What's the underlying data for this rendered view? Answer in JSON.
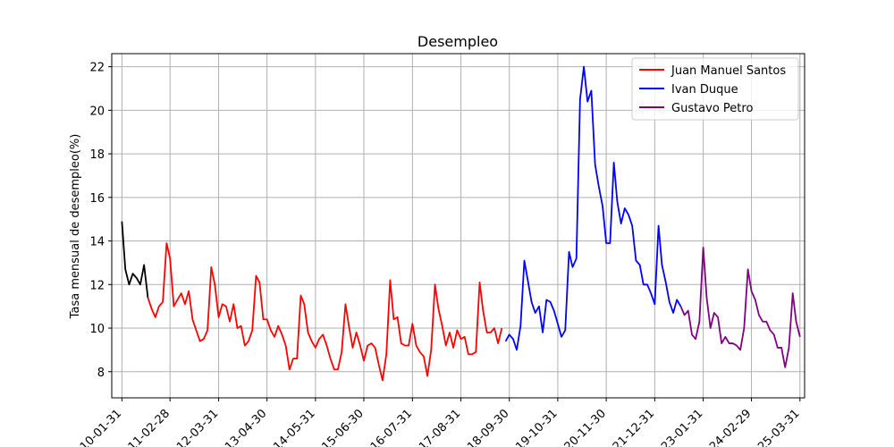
{
  "chart_data": {
    "type": "line",
    "title": "Desempleo",
    "xlabel": "",
    "ylabel": "Tasa mensual de desempleo(%)",
    "ylim": [
      6.8,
      22.6
    ],
    "xlim": [
      "2009-11-09",
      "2025-05-08"
    ],
    "grid": true,
    "legend": "top-right",
    "x_ticks": [
      "2010-01-31",
      "2011-02-28",
      "2012-03-31",
      "2013-04-30",
      "2014-05-31",
      "2015-06-30",
      "2016-07-31",
      "2017-08-31",
      "2018-09-30",
      "2019-10-31",
      "2020-11-30",
      "2021-12-31",
      "2023-01-31",
      "2024-02-29",
      "2025-03-31"
    ],
    "y_ticks": [
      8,
      10,
      12,
      14,
      16,
      18,
      20,
      22
    ],
    "series": [
      {
        "name": "",
        "color": "#000000",
        "x": [
          "2010-01-31",
          "2010-02-28",
          "2010-03-31",
          "2010-04-30",
          "2010-05-31",
          "2010-06-30",
          "2010-07-31",
          "2010-08-31"
        ],
        "values": [
          14.9,
          12.7,
          12.0,
          12.5,
          12.3,
          12.0,
          12.9,
          11.4
        ]
      },
      {
        "name": "Juan Manuel Santos",
        "color": "#ff0000",
        "x": [
          "2010-08-31",
          "2010-09-30",
          "2010-10-31",
          "2010-11-30",
          "2010-12-31",
          "2011-01-31",
          "2011-02-28",
          "2011-03-31",
          "2011-04-30",
          "2011-05-31",
          "2011-06-30",
          "2011-07-31",
          "2011-08-31",
          "2011-09-30",
          "2011-10-31",
          "2011-11-30",
          "2011-12-31",
          "2012-01-31",
          "2012-02-29",
          "2012-03-31",
          "2012-04-30",
          "2012-05-31",
          "2012-06-30",
          "2012-07-31",
          "2012-08-31",
          "2012-09-30",
          "2012-10-31",
          "2012-11-30",
          "2012-12-31",
          "2013-01-31",
          "2013-02-28",
          "2013-03-31",
          "2013-04-30",
          "2013-05-31",
          "2013-06-30",
          "2013-07-31",
          "2013-08-31",
          "2013-09-30",
          "2013-10-31",
          "2013-11-30",
          "2013-12-31",
          "2014-01-31",
          "2014-02-28",
          "2014-03-31",
          "2014-04-30",
          "2014-05-31",
          "2014-06-30",
          "2014-07-31",
          "2014-08-31",
          "2014-09-30",
          "2014-10-31",
          "2014-11-30",
          "2014-12-31",
          "2015-01-31",
          "2015-02-28",
          "2015-03-31",
          "2015-04-30",
          "2015-05-31",
          "2015-06-30",
          "2015-07-31",
          "2015-08-31",
          "2015-09-30",
          "2015-10-31",
          "2015-11-30",
          "2015-12-31",
          "2016-01-31",
          "2016-02-29",
          "2016-03-31",
          "2016-04-30",
          "2016-05-31",
          "2016-06-30",
          "2016-07-31",
          "2016-08-31",
          "2016-09-30",
          "2016-10-31",
          "2016-11-30",
          "2016-12-31",
          "2017-01-31",
          "2017-02-28",
          "2017-03-31",
          "2017-04-30",
          "2017-05-31",
          "2017-06-30",
          "2017-07-31",
          "2017-08-31",
          "2017-09-30",
          "2017-10-31",
          "2017-11-30",
          "2017-12-31",
          "2018-01-31",
          "2018-02-28",
          "2018-03-31",
          "2018-04-30",
          "2018-05-31",
          "2018-06-30",
          "2018-07-31"
        ],
        "values": [
          11.4,
          10.9,
          10.5,
          11.0,
          11.2,
          13.9,
          13.2,
          11.0,
          11.3,
          11.6,
          11.1,
          11.7,
          10.4,
          9.9,
          9.4,
          9.5,
          9.9,
          12.8,
          12.0,
          10.5,
          11.1,
          11.0,
          10.3,
          11.1,
          10.0,
          10.1,
          9.2,
          9.4,
          9.9,
          12.4,
          12.1,
          10.4,
          10.4,
          9.9,
          9.6,
          10.1,
          9.7,
          9.2,
          8.1,
          8.6,
          8.6,
          11.5,
          11.1,
          9.8,
          9.4,
          9.1,
          9.5,
          9.7,
          9.2,
          8.6,
          8.1,
          8.1,
          8.9,
          11.1,
          10.1,
          9.1,
          9.8,
          9.2,
          8.5,
          9.2,
          9.3,
          9.1,
          8.3,
          7.6,
          8.8,
          12.2,
          10.4,
          10.5,
          9.3,
          9.2,
          9.2,
          10.2,
          9.2,
          8.9,
          8.7,
          7.8,
          9.0,
          12.0,
          10.9,
          10.1,
          9.2,
          9.8,
          9.1,
          9.9,
          9.5,
          9.6,
          8.8,
          8.8,
          8.9,
          12.1,
          10.8,
          9.8,
          9.8,
          10.0,
          9.3,
          10.0
        ]
      },
      {
        "name": "Ivan Duque",
        "color": "#0000ff",
        "x": [
          "2018-08-31",
          "2018-09-30",
          "2018-10-31",
          "2018-11-30",
          "2018-12-31",
          "2019-01-31",
          "2019-02-28",
          "2019-03-31",
          "2019-04-30",
          "2019-05-31",
          "2019-06-30",
          "2019-07-31",
          "2019-08-31",
          "2019-09-30",
          "2019-10-31",
          "2019-11-30",
          "2019-12-31",
          "2020-01-31",
          "2020-02-29",
          "2020-03-31",
          "2020-04-30",
          "2020-05-31",
          "2020-06-30",
          "2020-07-31",
          "2020-08-31",
          "2020-09-30",
          "2020-10-31",
          "2020-11-30",
          "2020-12-31",
          "2021-01-31",
          "2021-02-28",
          "2021-03-31",
          "2021-04-30",
          "2021-05-31",
          "2021-06-30",
          "2021-07-31",
          "2021-08-31",
          "2021-09-30",
          "2021-10-31",
          "2021-11-30",
          "2021-12-31",
          "2022-01-31",
          "2022-02-28",
          "2022-03-31",
          "2022-04-30",
          "2022-05-31",
          "2022-06-30",
          "2022-07-31"
        ],
        "values": [
          9.4,
          9.7,
          9.5,
          9.0,
          10.1,
          13.1,
          12.2,
          11.2,
          10.7,
          11.0,
          9.8,
          11.3,
          11.2,
          10.8,
          10.2,
          9.6,
          9.9,
          13.5,
          12.8,
          13.2,
          20.5,
          22.0,
          20.4,
          20.9,
          17.5,
          16.5,
          15.6,
          13.9,
          13.9,
          17.6,
          15.8,
          14.8,
          15.5,
          15.2,
          14.7,
          13.1,
          12.9,
          12.0,
          12.0,
          11.6,
          11.1,
          14.7,
          12.9,
          12.1,
          11.2,
          10.7,
          11.3,
          11.0
        ]
      },
      {
        "name": "Gustavo Petro",
        "color": "#800080",
        "x": [
          "2022-07-31",
          "2022-08-31",
          "2022-09-30",
          "2022-10-31",
          "2022-11-30",
          "2022-12-31",
          "2023-01-31",
          "2023-02-28",
          "2023-03-31",
          "2023-04-30",
          "2023-05-31",
          "2023-06-30",
          "2023-07-31",
          "2023-08-31",
          "2023-09-30",
          "2023-10-31",
          "2023-11-30",
          "2023-12-31",
          "2024-01-31",
          "2024-02-29",
          "2024-03-31",
          "2024-04-30",
          "2024-05-31",
          "2024-06-30",
          "2024-07-31",
          "2024-08-31",
          "2024-09-30",
          "2024-10-31",
          "2024-11-30",
          "2024-12-31",
          "2025-01-31",
          "2025-02-28",
          "2025-03-31"
        ],
        "values": [
          11.0,
          10.6,
          10.8,
          9.7,
          9.5,
          10.3,
          13.7,
          11.4,
          10.0,
          10.7,
          10.5,
          9.3,
          9.6,
          9.3,
          9.3,
          9.2,
          9.0,
          10.0,
          12.7,
          11.7,
          11.3,
          10.6,
          10.3,
          10.3,
          9.9,
          9.7,
          9.1,
          9.1,
          8.2,
          9.1,
          11.6,
          10.3,
          9.6
        ]
      }
    ]
  }
}
